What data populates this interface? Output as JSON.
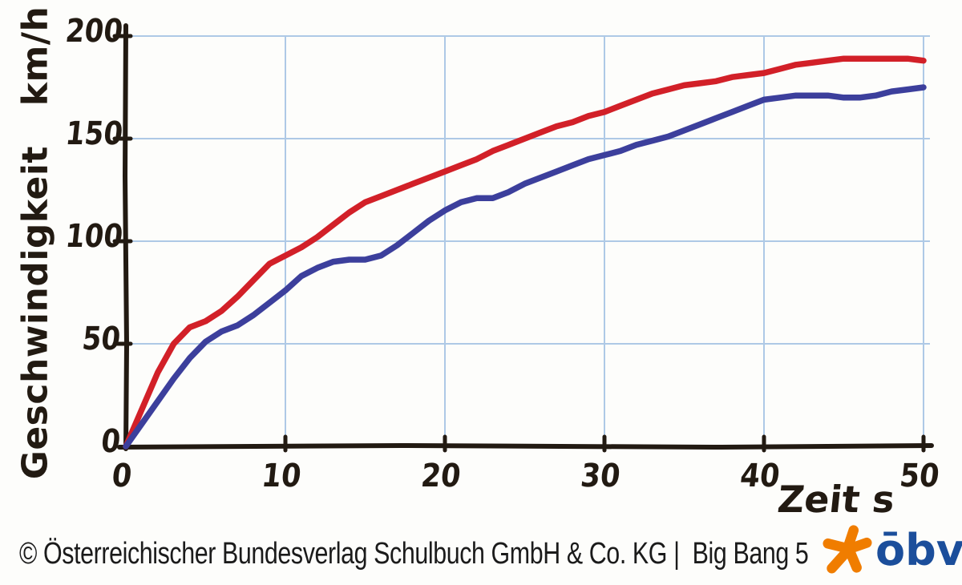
{
  "style": {
    "paper": "#fdfdfb",
    "ink": "#221a12",
    "grid_color": "#aec9e6"
  },
  "chart_data": {
    "type": "line",
    "title": "",
    "xlabel": "Zeit s",
    "ylabel": "Geschwindigkeit km/h",
    "xlim": [
      0,
      50
    ],
    "ylim": [
      0,
      200
    ],
    "x_ticks": [
      0,
      10,
      20,
      30,
      40,
      50
    ],
    "y_ticks": [
      0,
      50,
      100,
      150,
      200
    ],
    "grid": true,
    "legend": "none",
    "x": [
      0,
      1,
      2,
      3,
      4,
      5,
      6,
      7,
      8,
      9,
      10,
      11,
      12,
      13,
      14,
      15,
      16,
      17,
      18,
      19,
      20,
      21,
      22,
      23,
      24,
      25,
      26,
      27,
      28,
      29,
      30,
      31,
      32,
      33,
      34,
      35,
      36,
      37,
      38,
      39,
      40,
      41,
      42,
      43,
      44,
      45,
      46,
      47,
      48,
      49,
      50
    ],
    "series": [
      {
        "name": "red-curve",
        "color": "#d22028",
        "values": [
          0,
          18,
          36,
          50,
          58,
          61,
          66,
          73,
          81,
          89,
          93,
          97,
          102,
          108,
          114,
          119,
          122,
          125,
          128,
          131,
          134,
          137,
          140,
          144,
          147,
          150,
          153,
          156,
          158,
          161,
          163,
          166,
          169,
          172,
          174,
          176,
          177,
          178,
          180,
          181,
          182,
          184,
          186,
          187,
          188,
          189,
          189,
          189,
          189,
          189,
          188
        ]
      },
      {
        "name": "blue-curve",
        "color": "#3c3f9c",
        "values": [
          0,
          11,
          22,
          33,
          43,
          51,
          56,
          59,
          64,
          70,
          76,
          83,
          87,
          90,
          91,
          91,
          93,
          98,
          104,
          110,
          115,
          119,
          121,
          121,
          124,
          128,
          131,
          134,
          137,
          140,
          142,
          144,
          147,
          149,
          151,
          154,
          157,
          160,
          163,
          166,
          169,
          170,
          171,
          171,
          171,
          170,
          170,
          171,
          173,
          174,
          175
        ]
      }
    ]
  },
  "footer": {
    "copyright": "© Österreichischer Bundesverlag Schulbuch GmbH & Co. KG |  Big Bang 5",
    "logo": {
      "text": "ōbv",
      "star_color": "#f07d00",
      "text_color": "#1b4e9b"
    }
  }
}
